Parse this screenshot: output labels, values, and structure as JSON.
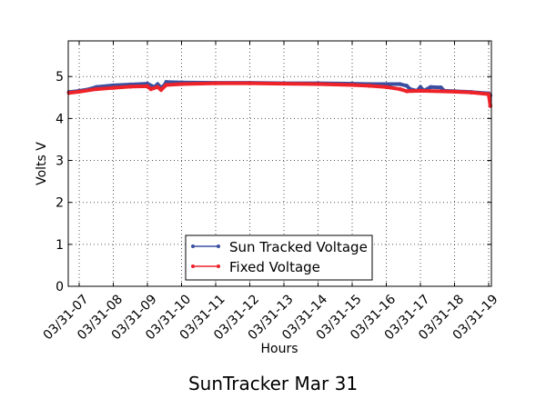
{
  "chart_data": {
    "type": "line",
    "title": "SunTracker Mar 31",
    "xlabel": "Hours",
    "ylabel": "Volts V",
    "xlim": [
      6.68,
      19.08
    ],
    "ylim": [
      0,
      5.85
    ],
    "grid": true,
    "legend_position": "lower-center",
    "x_ticks": [
      7,
      8,
      9,
      10,
      11,
      12,
      13,
      14,
      15,
      16,
      17,
      18,
      19
    ],
    "x_tick_labels": [
      "03/31-07",
      "03/31-08",
      "03/31-09",
      "03/31-10",
      "03/31-11",
      "03/31-12",
      "03/31-13",
      "03/31-14",
      "03/31-15",
      "03/31-16",
      "03/31-17",
      "03/31-18",
      "03/31-19"
    ],
    "y_ticks": [
      0,
      1,
      2,
      3,
      4,
      5
    ],
    "y_tick_labels": [
      "0",
      "1",
      "2",
      "3",
      "4",
      "5"
    ],
    "series": [
      {
        "name": "Sun Tracked Voltage",
        "color": "#3a4fa0",
        "x": [
          6.7,
          7.0,
          7.3,
          7.5,
          8.0,
          8.5,
          9.0,
          9.2,
          9.3,
          9.4,
          9.5,
          9.55,
          10,
          11,
          12,
          13,
          14,
          15,
          15.5,
          16,
          16.4,
          16.6,
          16.7,
          16.9,
          17.0,
          17.1,
          17.3,
          17.6,
          17.7,
          18,
          18.5,
          19,
          19.05
        ],
        "y": [
          4.63,
          4.66,
          4.7,
          4.75,
          4.79,
          4.81,
          4.83,
          4.75,
          4.82,
          4.73,
          4.8,
          4.87,
          4.86,
          4.85,
          4.85,
          4.84,
          4.84,
          4.83,
          4.82,
          4.82,
          4.82,
          4.78,
          4.7,
          4.66,
          4.75,
          4.66,
          4.75,
          4.74,
          4.66,
          4.65,
          4.63,
          4.6,
          4.55
        ]
      },
      {
        "name": "Fixed Voltage",
        "color": "#ee2229",
        "x": [
          6.7,
          7.0,
          7.5,
          8.0,
          8.5,
          9.0,
          9.1,
          9.3,
          9.4,
          9.55,
          10,
          11,
          12,
          13,
          14,
          15,
          15.5,
          16,
          16.4,
          16.6,
          17,
          18,
          18.5,
          19,
          19.05
        ],
        "y": [
          4.61,
          4.64,
          4.7,
          4.73,
          4.76,
          4.77,
          4.7,
          4.75,
          4.68,
          4.8,
          4.82,
          4.84,
          4.84,
          4.83,
          4.82,
          4.8,
          4.78,
          4.75,
          4.7,
          4.65,
          4.66,
          4.64,
          4.62,
          4.58,
          4.3
        ]
      }
    ]
  }
}
